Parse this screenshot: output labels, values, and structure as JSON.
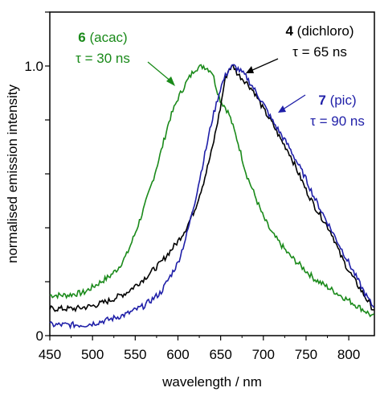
{
  "chart_data": {
    "type": "line",
    "xlabel": "wavelength / nm",
    "ylabel": "normalised emission intensity",
    "xlim": [
      450,
      830
    ],
    "ylim": [
      0,
      1.2
    ],
    "xticks": [
      450,
      500,
      550,
      600,
      650,
      700,
      750,
      800
    ],
    "yticks": [
      0,
      1.0
    ],
    "ytick_labels": [
      "0",
      "1.0"
    ],
    "grid": false,
    "series": [
      {
        "color": "#1a8a1a",
        "points": [
          [
            450,
            0.15
          ],
          [
            470,
            0.15
          ],
          [
            490,
            0.16
          ],
          [
            500,
            0.18
          ],
          [
            510,
            0.2
          ],
          [
            520,
            0.22
          ],
          [
            530,
            0.25
          ],
          [
            540,
            0.3
          ],
          [
            550,
            0.38
          ],
          [
            560,
            0.47
          ],
          [
            570,
            0.57
          ],
          [
            580,
            0.68
          ],
          [
            590,
            0.8
          ],
          [
            600,
            0.88
          ],
          [
            610,
            0.94
          ],
          [
            620,
            0.99
          ],
          [
            630,
            1.0
          ],
          [
            640,
            0.98
          ],
          [
            645,
            0.92
          ],
          [
            650,
            0.87
          ],
          [
            655,
            0.85
          ],
          [
            660,
            0.82
          ],
          [
            670,
            0.72
          ],
          [
            680,
            0.6
          ],
          [
            690,
            0.52
          ],
          [
            700,
            0.44
          ],
          [
            710,
            0.38
          ],
          [
            720,
            0.34
          ],
          [
            730,
            0.3
          ],
          [
            740,
            0.27
          ],
          [
            750,
            0.24
          ],
          [
            760,
            0.21
          ],
          [
            770,
            0.19
          ],
          [
            780,
            0.17
          ],
          [
            790,
            0.15
          ],
          [
            800,
            0.13
          ],
          [
            810,
            0.11
          ],
          [
            820,
            0.09
          ],
          [
            828,
            0.07
          ]
        ]
      },
      {
        "color": "#000000",
        "points": [
          [
            450,
            0.1
          ],
          [
            480,
            0.1
          ],
          [
            500,
            0.11
          ],
          [
            520,
            0.13
          ],
          [
            540,
            0.16
          ],
          [
            560,
            0.21
          ],
          [
            580,
            0.27
          ],
          [
            600,
            0.35
          ],
          [
            610,
            0.4
          ],
          [
            620,
            0.47
          ],
          [
            630,
            0.57
          ],
          [
            640,
            0.69
          ],
          [
            650,
            0.85
          ],
          [
            655,
            0.95
          ],
          [
            660,
            0.99
          ],
          [
            665,
            1.0
          ],
          [
            670,
            0.97
          ],
          [
            680,
            0.94
          ],
          [
            690,
            0.9
          ],
          [
            700,
            0.84
          ],
          [
            710,
            0.79
          ],
          [
            720,
            0.73
          ],
          [
            730,
            0.68
          ],
          [
            740,
            0.61
          ],
          [
            750,
            0.54
          ],
          [
            760,
            0.48
          ],
          [
            770,
            0.43
          ],
          [
            780,
            0.38
          ],
          [
            790,
            0.3
          ],
          [
            800,
            0.24
          ],
          [
            810,
            0.19
          ],
          [
            820,
            0.14
          ],
          [
            828,
            0.1
          ]
        ]
      },
      {
        "color": "#1f1fa8",
        "points": [
          [
            450,
            0.04
          ],
          [
            470,
            0.04
          ],
          [
            490,
            0.04
          ],
          [
            500,
            0.045
          ],
          [
            520,
            0.06
          ],
          [
            540,
            0.08
          ],
          [
            560,
            0.11
          ],
          [
            580,
            0.16
          ],
          [
            600,
            0.27
          ],
          [
            610,
            0.37
          ],
          [
            620,
            0.5
          ],
          [
            630,
            0.65
          ],
          [
            640,
            0.8
          ],
          [
            650,
            0.92
          ],
          [
            655,
            0.96
          ],
          [
            660,
            0.99
          ],
          [
            665,
            1.0
          ],
          [
            670,
            0.99
          ],
          [
            680,
            0.96
          ],
          [
            690,
            0.91
          ],
          [
            700,
            0.86
          ],
          [
            710,
            0.8
          ],
          [
            720,
            0.75
          ],
          [
            730,
            0.7
          ],
          [
            740,
            0.64
          ],
          [
            750,
            0.58
          ],
          [
            760,
            0.51
          ],
          [
            770,
            0.45
          ],
          [
            780,
            0.39
          ],
          [
            790,
            0.33
          ],
          [
            800,
            0.27
          ],
          [
            810,
            0.21
          ],
          [
            820,
            0.15
          ],
          [
            828,
            0.11
          ]
        ]
      }
    ]
  },
  "annotations": {
    "acac": {
      "num": "6",
      "name": " (acac)",
      "tau": "τ = 30 ns",
      "color": "#1a8a1a"
    },
    "dichloro": {
      "num": "4",
      "name": " (dichloro)",
      "tau": "τ = 65 ns",
      "color": "#000000"
    },
    "pic": {
      "num": "7",
      "name": " (pic)",
      "tau": "τ = 90 ns",
      "color": "#1f1fa8"
    }
  }
}
